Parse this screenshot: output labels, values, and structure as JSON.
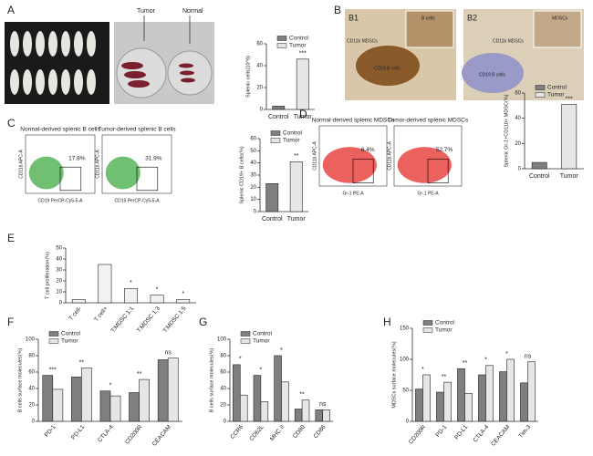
{
  "panels": {
    "a": "A",
    "b": "B",
    "c": "C",
    "d": "D",
    "e": "E",
    "f": "F",
    "g": "G",
    "h": "H"
  },
  "photos": {
    "tumor": "Tumor",
    "normal": "Normal",
    "b1": "B1",
    "b2": "B2",
    "b1_inset": "B cells",
    "b1_label": "CD11b MDSCs",
    "b1_region": "CD19 B cells",
    "b2_inset": "MDSCs",
    "b2_label": "CD11b MDSCs",
    "b2_region": "CD19 B cells"
  },
  "flow": [
    {
      "title": "Normal-derived splenic B cells",
      "gate": "17.8%",
      "ylabel": "CD11b APC-A",
      "xlabel": "CD19 PerCP-Cy5-5-A"
    },
    {
      "title": "Tumor-derived splenic B cells",
      "gate": "31.9%",
      "ylabel": "CD11b APC-A",
      "xlabel": "CD19 PerCP-Cy5-5-A"
    },
    {
      "title": "Normal-derived splenic MDSCs",
      "gate": "6.4%",
      "ylabel": "CD11b APC-A",
      "xlabel": "Gr-1 PE-A"
    },
    {
      "title": "Tumor-derived splenic MDSCs",
      "gate": "52.7%",
      "ylabel": "CD11b APC-A",
      "xlabel": "Gr-1 PE-A"
    }
  ],
  "chart_data": [
    {
      "type": "bar",
      "ylabel": "Splenic cells(10^6)",
      "categories": [
        "Control",
        "Tumor"
      ],
      "values": [
        3,
        46
      ],
      "colors": [
        "#7f7f7f",
        "#e6e6e6"
      ],
      "legend": [
        "Control",
        "Tumor"
      ],
      "significance": [
        null,
        "***"
      ],
      "ylim": [
        0,
        60
      ],
      "yticks": [
        0,
        20,
        40,
        60
      ]
    },
    {
      "type": "bar",
      "ylabel": "Splenic CD19+ B cells(%)",
      "categories": [
        "Control",
        "Tumor"
      ],
      "values": [
        23,
        41
      ],
      "colors": [
        "#7f7f7f",
        "#e6e6e6"
      ],
      "legend": [
        "Control",
        "Tumor"
      ],
      "significance": [
        null,
        "**"
      ],
      "ylim": [
        0,
        60
      ],
      "yticks": [
        0,
        10,
        20,
        30,
        40,
        50,
        60
      ]
    },
    {
      "type": "bar",
      "ylabel": "Splenic Gr-1+CD11b+ MDSC(%)",
      "categories": [
        "Control",
        "Tumor"
      ],
      "values": [
        5,
        51
      ],
      "colors": [
        "#7f7f7f",
        "#e6e6e6"
      ],
      "legend": [
        "Control",
        "Tumor"
      ],
      "significance": [
        null,
        "***"
      ],
      "ylim": [
        0,
        60
      ],
      "yticks": [
        0,
        20,
        40,
        60
      ]
    },
    {
      "type": "bar",
      "ylabel": "T cell proliferation(%)",
      "categories": [
        "T cell-",
        "T cell+",
        "T:MDSC 1:1",
        "T:MDSC 1:3",
        "T:MDSC 1:5"
      ],
      "values": [
        3,
        35,
        13,
        7,
        3
      ],
      "colors": [
        "#f2f2f2",
        "#f2f2f2",
        "#f2f2f2",
        "#f2f2f2",
        "#f2f2f2"
      ],
      "significance": [
        null,
        null,
        "*",
        "*",
        "*"
      ],
      "ylim": [
        0,
        50
      ],
      "yticks": [
        0,
        10,
        20,
        30,
        40,
        50
      ]
    },
    {
      "type": "bar",
      "ylabel": "B cells surface molecules(%)",
      "categories": [
        "PD-1",
        "PD-L1",
        "CTLA-4",
        "CD200R",
        "CEACAM"
      ],
      "series": [
        {
          "name": "Control",
          "color": "#7f7f7f",
          "values": [
            56,
            54,
            37,
            35,
            75
          ]
        },
        {
          "name": "Tumor",
          "color": "#e6e6e6",
          "values": [
            39,
            65,
            31,
            51,
            77
          ]
        }
      ],
      "significance": [
        "***",
        "**",
        "*",
        "**",
        "ns"
      ],
      "ylim": [
        0,
        100
      ],
      "yticks": [
        0,
        20,
        40,
        60,
        80,
        100
      ]
    },
    {
      "type": "bar",
      "ylabel": "B cells surface molecules(%)",
      "categories": [
        "CCR6",
        "CD62L",
        "MHC II",
        "CD80",
        "CD86"
      ],
      "series": [
        {
          "name": "Control",
          "color": "#7f7f7f",
          "values": [
            69,
            56,
            80,
            15,
            14
          ]
        },
        {
          "name": "Tumor",
          "color": "#e6e6e6",
          "values": [
            32,
            24,
            48,
            26,
            14
          ]
        }
      ],
      "significance": [
        "*",
        "*",
        "*",
        "**",
        "ns"
      ],
      "ylim": [
        0,
        100
      ],
      "yticks": [
        0,
        20,
        40,
        60,
        80,
        100
      ]
    },
    {
      "type": "bar",
      "ylabel": "MDSCs surface molecules(%)",
      "categories": [
        "CD200R",
        "PD-1",
        "PD-L1",
        "CTLA-4",
        "CEACAM",
        "Tim-3"
      ],
      "series": [
        {
          "name": "Control",
          "color": "#7f7f7f",
          "values": [
            52,
            47,
            85,
            75,
            80,
            62
          ]
        },
        {
          "name": "Tumor",
          "color": "#e6e6e6",
          "values": [
            75,
            63,
            45,
            90,
            100,
            96
          ]
        }
      ],
      "significance": [
        "*",
        "**",
        "**",
        "*",
        "*",
        "ns"
      ],
      "ylim": [
        0,
        150
      ],
      "yticks": [
        0,
        50,
        100,
        150
      ]
    }
  ]
}
